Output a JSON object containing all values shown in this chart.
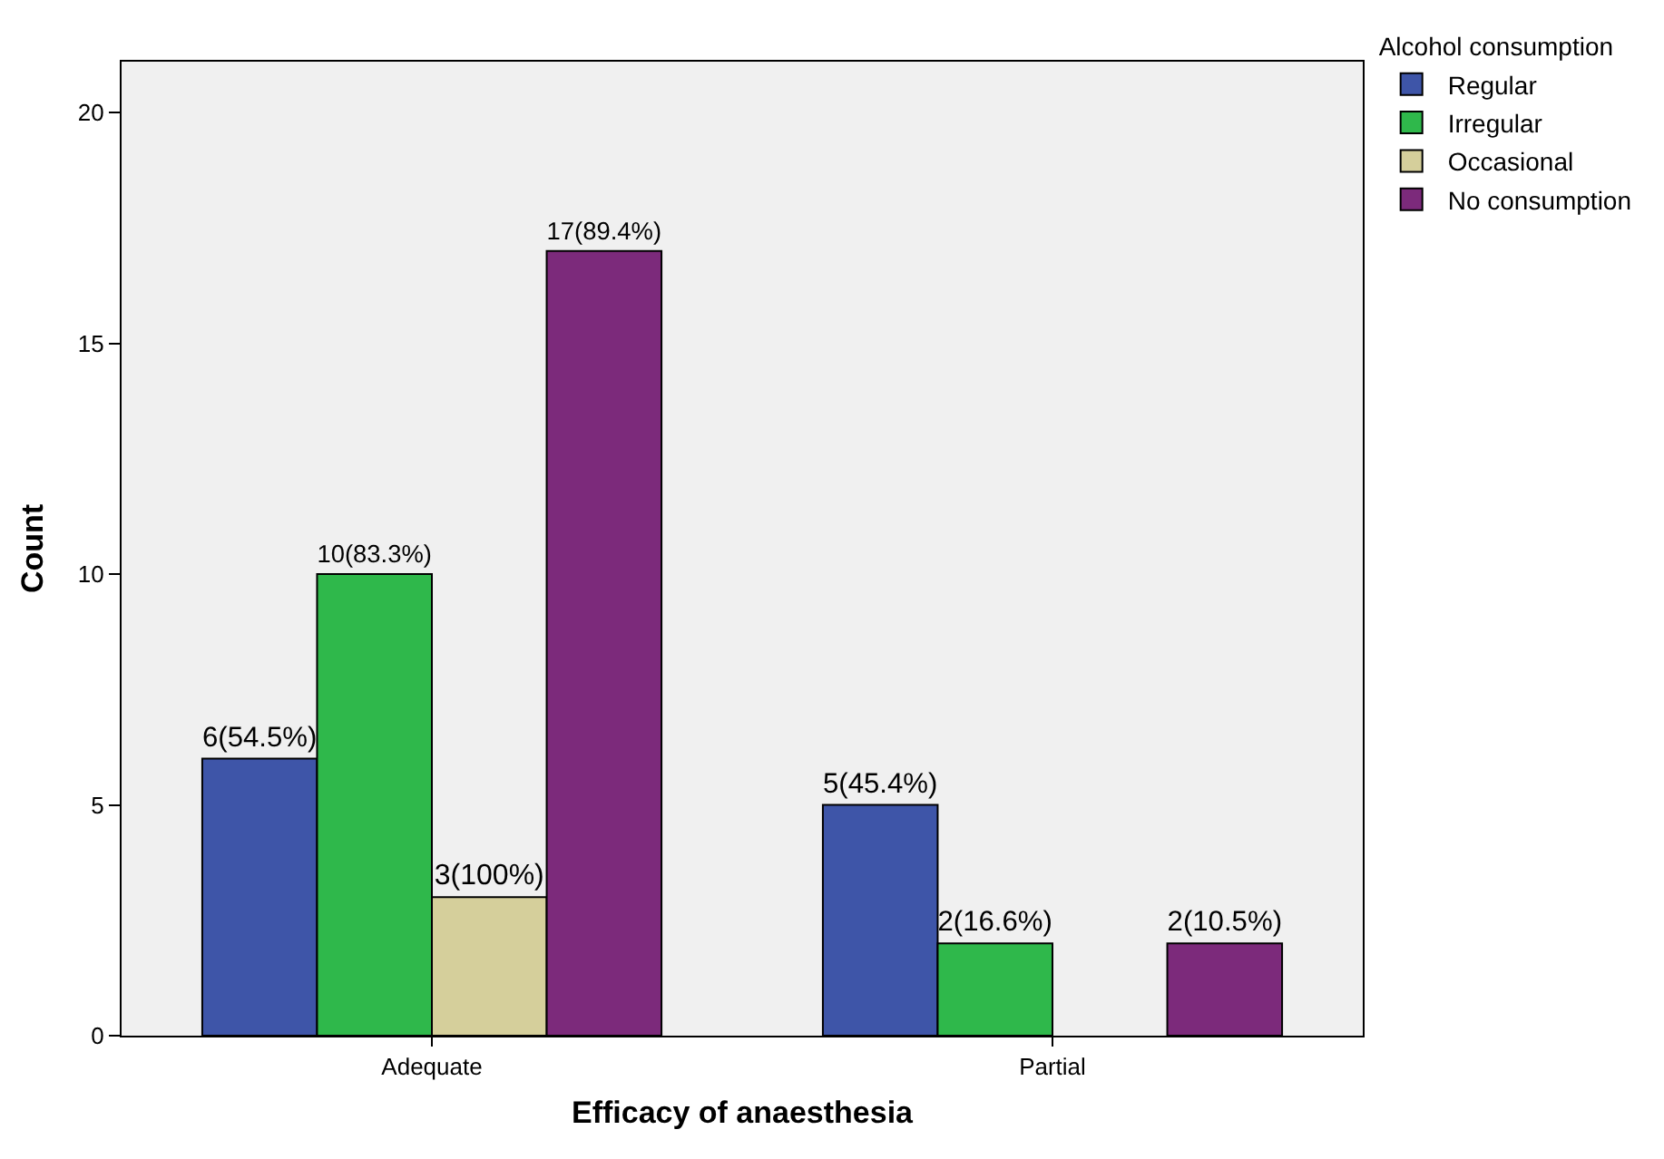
{
  "chart_data": {
    "type": "bar",
    "xlabel": "Efficacy of anaesthesia",
    "ylabel": "Count",
    "legend_title": "Alcohol consumption",
    "categories": [
      "Adequate",
      "Partial"
    ],
    "series": [
      {
        "name": "Regular",
        "color": "#3e55a8",
        "values": [
          6,
          5
        ],
        "value_labels": [
          "6(54.5%)",
          "5(45.4%)"
        ]
      },
      {
        "name": "Irregular",
        "color": "#2fb84b",
        "values": [
          10,
          2
        ],
        "value_labels": [
          "10(83.3%)",
          "2(16.6%)"
        ]
      },
      {
        "name": "Occasional",
        "color": "#d5cf9b",
        "values": [
          3,
          null
        ],
        "value_labels": [
          "3(100%)",
          null
        ]
      },
      {
        "name": "No consumption",
        "color": "#7c2a7b",
        "values": [
          17,
          2
        ],
        "value_labels": [
          "17(89.4%)",
          "2(10.5%)"
        ]
      }
    ],
    "ylim": [
      0,
      21.1
    ],
    "yticks": [
      0,
      5,
      10,
      15,
      20
    ],
    "grid": false,
    "legend": "top right"
  }
}
